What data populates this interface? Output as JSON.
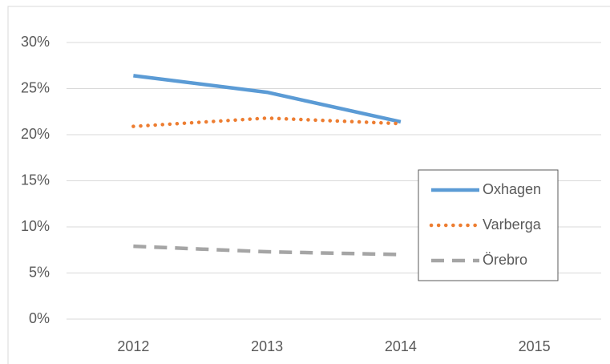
{
  "chart_data": {
    "type": "line",
    "categories": [
      "2012",
      "2013",
      "2014",
      "2015"
    ],
    "series": [
      {
        "name": "Oxhagen",
        "color": "#5b9bd5",
        "style": "solid",
        "values": [
          26.4,
          24.6,
          21.4,
          null
        ]
      },
      {
        "name": "Varberga",
        "color": "#ed7d31",
        "style": "dotted",
        "values": [
          20.9,
          21.8,
          21.2,
          null
        ]
      },
      {
        "name": "Örebro",
        "color": "#a5a5a5",
        "style": "dashed",
        "values": [
          7.9,
          7.3,
          7.0,
          null
        ]
      }
    ],
    "ylim": [
      0,
      30
    ],
    "yticks": [
      {
        "value": 0,
        "label": "0%"
      },
      {
        "value": 5,
        "label": "5%"
      },
      {
        "value": 10,
        "label": "10%"
      },
      {
        "value": 15,
        "label": "15%"
      },
      {
        "value": 20,
        "label": "20%"
      },
      {
        "value": 25,
        "label": "25%"
      },
      {
        "value": 30,
        "label": "30%"
      }
    ],
    "grid": true,
    "legend": "right"
  }
}
